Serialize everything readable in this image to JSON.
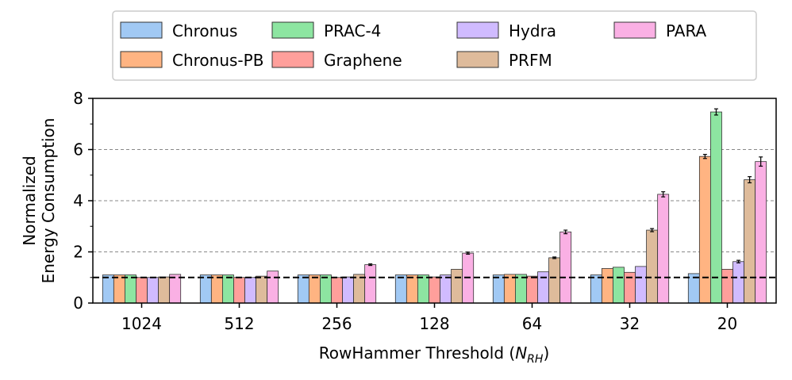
{
  "chart_data": {
    "type": "bar",
    "xlabel_prefix": "RowHammer Threshold (",
    "xlabel_symbol": "N",
    "xlabel_subscript": "RH",
    "xlabel_suffix": ")",
    "ylabel_line1": "Normalized",
    "ylabel_line2": "Energy Consumption",
    "ylim": [
      0,
      8
    ],
    "yticks": [
      "0",
      "2",
      "4",
      "6",
      "8"
    ],
    "grid_y": [
      2,
      4,
      6
    ],
    "grid_style": "dashed-horizontal",
    "reference_line": 1,
    "legend_position": "top-center, above plot",
    "categories": [
      "1024",
      "512",
      "256",
      "128",
      "64",
      "32",
      "20"
    ],
    "series": [
      {
        "name": "Chronus",
        "color": "#a1c9f4",
        "values": [
          1.1,
          1.1,
          1.1,
          1.1,
          1.1,
          1.1,
          1.15
        ],
        "errors": [
          0,
          0,
          0,
          0,
          0,
          0,
          0
        ]
      },
      {
        "name": "Chronus-PB",
        "color": "#ffb482",
        "values": [
          1.1,
          1.1,
          1.1,
          1.1,
          1.12,
          1.35,
          5.73
        ],
        "errors": [
          0,
          0,
          0,
          0,
          0,
          0,
          0.08
        ]
      },
      {
        "name": "PRAC-4",
        "color": "#8de5a1",
        "values": [
          1.1,
          1.1,
          1.1,
          1.1,
          1.12,
          1.4,
          7.47
        ],
        "errors": [
          0,
          0,
          0,
          0,
          0,
          0,
          0.12
        ]
      },
      {
        "name": "Graphene",
        "color": "#ff9f9b",
        "values": [
          1.0,
          1.0,
          1.0,
          1.02,
          1.05,
          1.2,
          1.32
        ],
        "errors": [
          0,
          0,
          0,
          0,
          0,
          0,
          0
        ]
      },
      {
        "name": "Hydra",
        "color": "#d0bbff",
        "values": [
          1.0,
          1.0,
          1.02,
          1.1,
          1.22,
          1.43,
          1.62
        ],
        "errors": [
          0,
          0,
          0,
          0,
          0,
          0,
          0.05
        ]
      },
      {
        "name": "PRFM",
        "color": "#debb9b",
        "values": [
          1.02,
          1.05,
          1.12,
          1.32,
          1.77,
          2.85,
          4.82
        ],
        "errors": [
          0,
          0,
          0,
          0,
          0.03,
          0.06,
          0.12
        ]
      },
      {
        "name": "PARA",
        "color": "#fab0e4",
        "values": [
          1.12,
          1.25,
          1.5,
          1.95,
          2.78,
          4.25,
          5.53
        ],
        "errors": [
          0,
          0,
          0.03,
          0.04,
          0.07,
          0.1,
          0.18
        ]
      }
    ]
  }
}
